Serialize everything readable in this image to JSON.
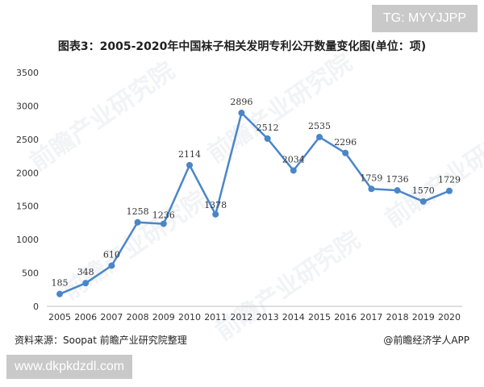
{
  "header": {
    "tag_text": "TG: MYYJJPP"
  },
  "chart_data": {
    "type": "line",
    "title": "图表3：2005-2020年中国袜子相关发明专利公开数量变化图(单位：项)",
    "categories": [
      "2005",
      "2006",
      "2007",
      "2008",
      "2009",
      "2010",
      "2011",
      "2012",
      "2013",
      "2014",
      "2015",
      "2016",
      "2017",
      "2018",
      "2019",
      "2020"
    ],
    "series": [
      {
        "values": [
          185,
          348,
          610,
          1258,
          1236,
          2114,
          1378,
          2896,
          2512,
          2034,
          2535,
          2296,
          1759,
          1736,
          1570,
          1729
        ]
      }
    ],
    "ylim": [
      0,
      3500
    ],
    "yticks": [
      0,
      500,
      1000,
      1500,
      2000,
      2500,
      3000,
      3500
    ],
    "grid": false,
    "line_color": "#4a86c8"
  },
  "footer": {
    "source": "资料来源：Soopat 前瞻产业研究院整理",
    "credit": "@前瞻经济学人APP",
    "url": "www.dkpkdzdl.com"
  },
  "watermark": {
    "text": "前瞻产业研究院"
  }
}
